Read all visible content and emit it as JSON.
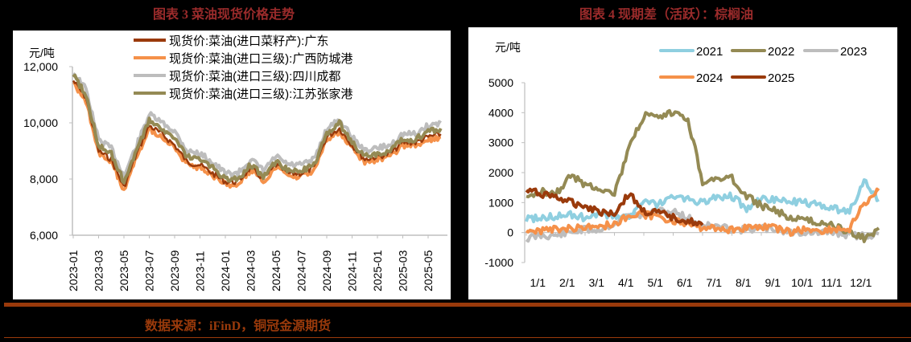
{
  "figures": {
    "left_title": "图表 3  菜油现货价格走势",
    "right_title": "图表 4  现期差（活跃）：棕榈油"
  },
  "footer": {
    "source": "数据来源：iFinD，铜冠金源期货"
  },
  "colors": {
    "title_red": "#9b2b2b",
    "rule": "#9a3a0b",
    "guangdong": "#9a3a0b",
    "fangchenggang": "#f5914a",
    "chengdu": "#bdbdbd",
    "zhangjiagang": "#948a54",
    "y2021": "#8fcfe0",
    "y2022": "#948a54",
    "y2023": "#bdbdbd",
    "y2024": "#f5914a",
    "y2025": "#9a3a0b"
  },
  "chart_data": [
    {
      "type": "line",
      "title": "图表 3 菜油现货价格走势",
      "ylabel": "元/吨",
      "xlabel": "",
      "ylim": [
        6000,
        12000
      ],
      "yticks": [
        "12,000",
        "10,000",
        "8,000",
        "6,000"
      ],
      "xticks": [
        "2023-01",
        "2023-03",
        "2023-05",
        "2023-07",
        "2023-09",
        "2023-11",
        "2024-01",
        "2024-03",
        "2024-05",
        "2024-07",
        "2024-09",
        "2024-11",
        "2025-01",
        "2025-03",
        "2025-05"
      ],
      "legend_position": "top-center-inside",
      "x": [
        "2023-01",
        "2023-02",
        "2023-03",
        "2023-04",
        "2023-05",
        "2023-06",
        "2023-07",
        "2023-08",
        "2023-09",
        "2023-10",
        "2023-11",
        "2023-12",
        "2024-01",
        "2024-02",
        "2024-03",
        "2024-04",
        "2024-05",
        "2024-06",
        "2024-07",
        "2024-08",
        "2024-09",
        "2024-10",
        "2024-11",
        "2024-12",
        "2025-01",
        "2025-02",
        "2025-03",
        "2025-04",
        "2025-05",
        "2025-06"
      ],
      "series": [
        {
          "name": "现货价:菜油(进口菜籽产):广东",
          "values": [
            11500,
            10900,
            9000,
            8700,
            7700,
            8900,
            9900,
            9600,
            9200,
            8600,
            8500,
            8200,
            7900,
            7900,
            8400,
            8000,
            8500,
            8200,
            8200,
            8400,
            9500,
            9800,
            9200,
            8700,
            8800,
            8900,
            9300,
            9300,
            9500,
            9600
          ]
        },
        {
          "name": "现货价:菜油(进口三级):广西防城港",
          "values": [
            11400,
            10800,
            8900,
            8600,
            7600,
            8800,
            9800,
            9500,
            9100,
            8500,
            8400,
            8100,
            7800,
            7800,
            8300,
            7900,
            8400,
            8100,
            8100,
            8300,
            9400,
            9700,
            9100,
            8600,
            8700,
            8800,
            9200,
            9200,
            9400,
            9500
          ]
        },
        {
          "name": "现货价:菜油(进口三级):四川成都",
          "values": [
            11800,
            11200,
            9400,
            9100,
            8100,
            9200,
            10300,
            10000,
            9700,
            9000,
            8900,
            8600,
            8200,
            8200,
            8700,
            8300,
            8800,
            8500,
            8500,
            8700,
            9800,
            10100,
            9500,
            9000,
            9100,
            9200,
            9600,
            9600,
            9900,
            10000
          ]
        },
        {
          "name": "现货价:菜油(进口三级):江苏张家港",
          "values": [
            11700,
            11000,
            9200,
            8900,
            7900,
            9000,
            10100,
            9800,
            9400,
            8800,
            8700,
            8400,
            8000,
            8000,
            8500,
            8100,
            8600,
            8300,
            8300,
            8500,
            9600,
            10000,
            9300,
            8800,
            8900,
            9000,
            9400,
            9400,
            9700,
            9800
          ]
        }
      ]
    },
    {
      "type": "line",
      "title": "图表 4 现期差（活跃）：棕榈油",
      "ylabel": "元/吨",
      "xlabel": "",
      "ylim": [
        -1000,
        5000
      ],
      "yticks": [
        "5000",
        "4000",
        "3000",
        "2000",
        "1000",
        "0",
        "-1000"
      ],
      "xticks": [
        "1/1",
        "2/1",
        "3/1",
        "4/1",
        "5/1",
        "6/1",
        "7/1",
        "8/1",
        "9/1",
        "10/1",
        "11/1",
        "12/1"
      ],
      "legend_position": "top-right-inside",
      "x": [
        "1/1",
        "1/15",
        "2/1",
        "2/15",
        "3/1",
        "3/15",
        "4/1",
        "4/15",
        "5/1",
        "5/15",
        "6/1",
        "6/15",
        "7/1",
        "7/15",
        "8/1",
        "8/15",
        "9/1",
        "9/15",
        "10/1",
        "10/15",
        "11/1",
        "11/15",
        "12/1",
        "12/15",
        "12/31"
      ],
      "series": [
        {
          "name": "2021",
          "values": [
            450,
            500,
            550,
            600,
            500,
            600,
            550,
            550,
            1000,
            950,
            1200,
            1100,
            1000,
            1200,
            1200,
            800,
            1100,
            1100,
            1050,
            1000,
            900,
            800,
            700,
            1700,
            1100
          ]
        },
        {
          "name": "2022",
          "values": [
            1100,
            1400,
            1300,
            1900,
            1600,
            1500,
            1300,
            2800,
            3900,
            3800,
            4000,
            3800,
            1700,
            1800,
            1800,
            1200,
            900,
            700,
            500,
            400,
            350,
            200,
            0,
            -200,
            150
          ]
        },
        {
          "name": "2023",
          "values": [
            -200,
            -100,
            -100,
            0,
            100,
            100,
            300,
            600,
            600,
            700,
            700,
            500,
            250,
            200,
            100,
            100,
            150,
            100,
            0,
            0,
            0,
            0,
            -100,
            -100,
            -50
          ]
        },
        {
          "name": "2024",
          "values": [
            0,
            50,
            100,
            150,
            200,
            200,
            300,
            550,
            600,
            500,
            400,
            250,
            150,
            150,
            100,
            150,
            200,
            150,
            0,
            100,
            50,
            100,
            100,
            1000,
            1400
          ]
        },
        {
          "name": "2025",
          "values": [
            1400,
            1300,
            1200,
            1000,
            900,
            700,
            650,
            1300,
            700,
            650,
            500,
            400,
            250
          ]
        }
      ]
    }
  ]
}
